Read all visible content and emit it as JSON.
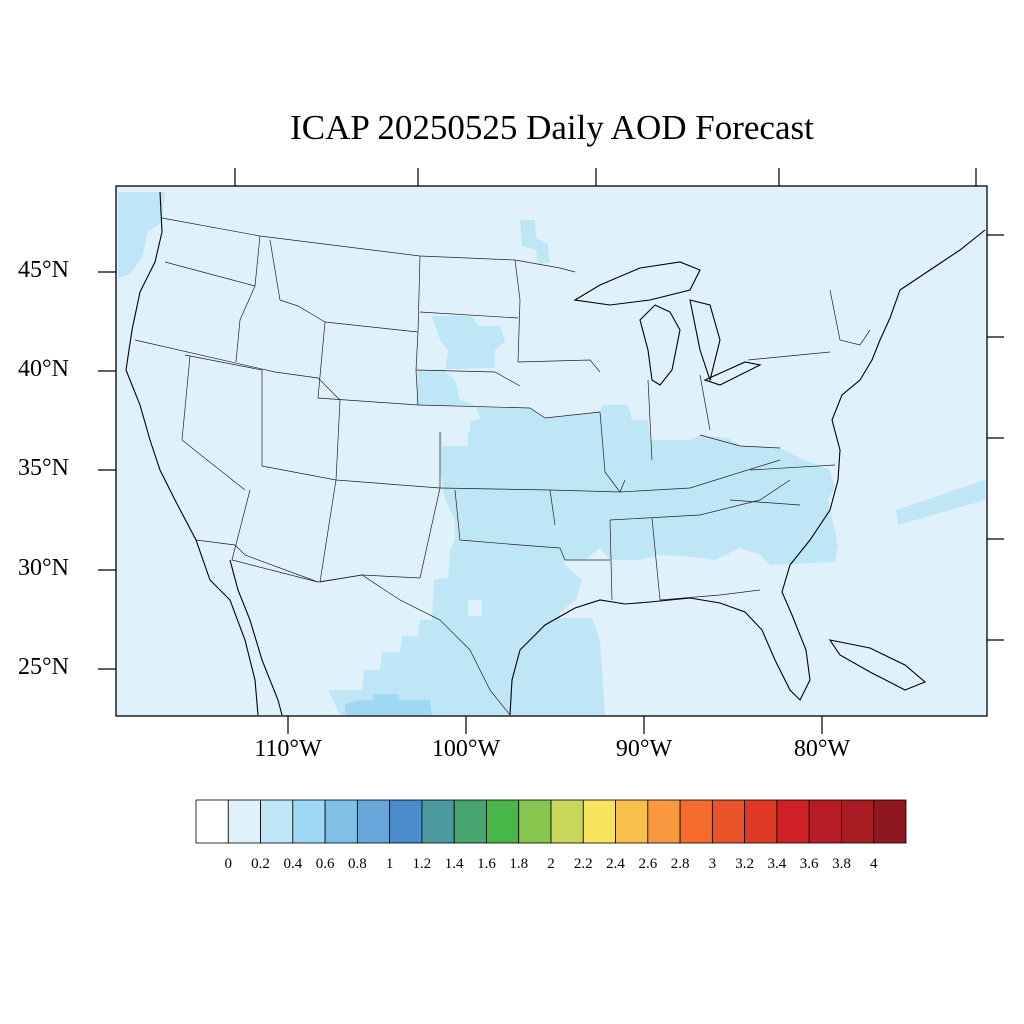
{
  "title": "ICAP 20250525 Daily AOD Forecast",
  "map": {
    "projection": "lambert-conformal",
    "region": "Continental United States",
    "lat_labels": [
      "45°N",
      "40°N",
      "35°N",
      "30°N",
      "25°N"
    ],
    "lon_labels": [
      "110°W",
      "100°W",
      "90°W",
      "80°W"
    ],
    "background_color": "#dff2fb",
    "boundary_color": "#000000"
  },
  "colorbar": {
    "labels": [
      "0",
      "0.2",
      "0.4",
      "0.6",
      "0.8",
      "1",
      "1.2",
      "1.4",
      "1.6",
      "1.8",
      "2",
      "2.2",
      "2.4",
      "2.6",
      "2.8",
      "3",
      "3.2",
      "3.4",
      "3.6",
      "3.8",
      "4"
    ],
    "colors": [
      "#ffffff",
      "#dff2fb",
      "#bfe6f7",
      "#9fd8f3",
      "#80bfe6",
      "#67a7d9",
      "#4a8ccc",
      "#4b9a9e",
      "#47a66f",
      "#49b64a",
      "#86c64e",
      "#c6d75a",
      "#f8e45c",
      "#f8bf4d",
      "#f8993f",
      "#f56c2e",
      "#ea5429",
      "#e03a27",
      "#cf2028",
      "#b81d27",
      "#a71c23",
      "#8f1820"
    ]
  },
  "aod_regions": [
    {
      "name": "great-plains-central",
      "band": "0.2-0.4"
    },
    {
      "name": "texas-mexico",
      "band": "0.2-0.4"
    },
    {
      "name": "ohio-valley-southeast",
      "band": "0.2-0.4"
    },
    {
      "name": "northwest-coast",
      "band": "0.2-0.4"
    },
    {
      "name": "atlantic-plume",
      "band": "0.2-0.4"
    },
    {
      "name": "north-mexico-core",
      "band": "0.4-0.6"
    }
  ]
}
